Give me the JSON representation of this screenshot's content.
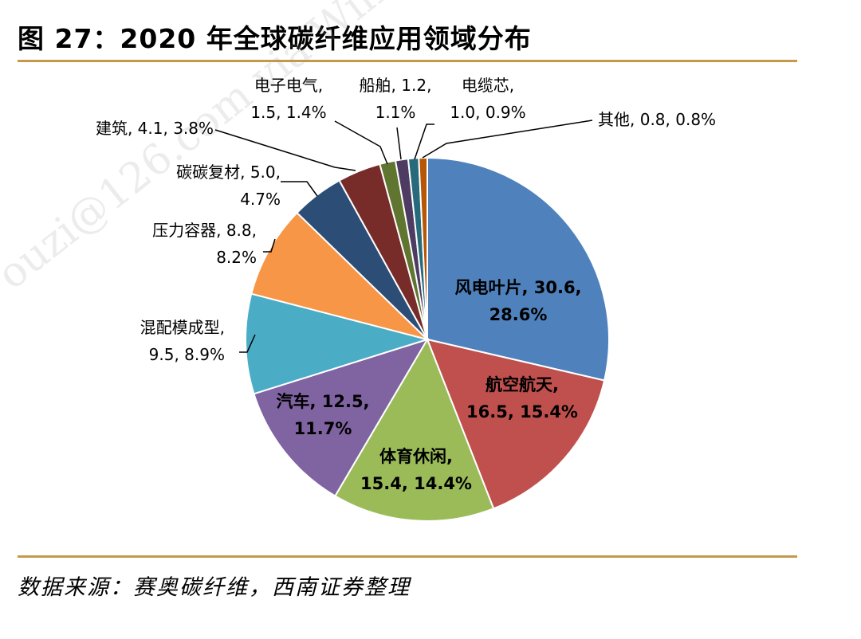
{
  "title": "图 27：2020 年全球碳纤维应用领域分布",
  "source": "数据来源：赛奥碳纤维，西南证券整理",
  "watermark": "ouzi@126.com via Wind",
  "colors": {
    "rule": "#c49a4a"
  },
  "chart_data": {
    "type": "pie",
    "title": "",
    "slices": [
      {
        "name": "风电叶片",
        "value": 30.6,
        "percent": 28.6,
        "color": "#4f81bd",
        "label": [
          "风电叶片, 30.6,",
          "28.6%"
        ]
      },
      {
        "name": "航空航天",
        "value": 16.5,
        "percent": 15.4,
        "color": "#c0504d",
        "label": [
          "航空航天,",
          "16.5, 15.4%"
        ]
      },
      {
        "name": "体育休闲",
        "value": 15.4,
        "percent": 14.4,
        "color": "#9bbb59",
        "label": [
          "体育休闲,",
          "15.4, 14.4%"
        ]
      },
      {
        "name": "汽车",
        "value": 12.5,
        "percent": 11.7,
        "color": "#8064a2",
        "label": [
          "汽车, 12.5,",
          "11.7%"
        ]
      },
      {
        "name": "混配模成型",
        "value": 9.5,
        "percent": 8.9,
        "color": "#4bacc6",
        "label": [
          "混配模成型,",
          "9.5, 8.9%"
        ]
      },
      {
        "name": "压力容器",
        "value": 8.8,
        "percent": 8.2,
        "color": "#f79646",
        "label": [
          "压力容器, 8.8,",
          "8.2%"
        ]
      },
      {
        "name": "碳碳复材",
        "value": 5.0,
        "percent": 4.7,
        "color": "#2c4d75",
        "label": [
          "碳碳复材, 5.0,",
          "4.7%"
        ]
      },
      {
        "name": "建筑",
        "value": 4.1,
        "percent": 3.8,
        "color": "#772c2a",
        "label": [
          "建筑, 4.1, 3.8%"
        ]
      },
      {
        "name": "电子电气",
        "value": 1.5,
        "percent": 1.4,
        "color": "#5f7530",
        "label": [
          "电子电气,",
          "1.5, 1.4%"
        ]
      },
      {
        "name": "船舶",
        "value": 1.2,
        "percent": 1.1,
        "color": "#4d3b62",
        "label": [
          "船舶, 1.2,",
          "1.1%"
        ]
      },
      {
        "name": "电缆芯",
        "value": 1.0,
        "percent": 0.9,
        "color": "#276a7c",
        "label": [
          "电缆芯,",
          "1.0, 0.9%"
        ]
      },
      {
        "name": "其他",
        "value": 0.8,
        "percent": 0.8,
        "color": "#b65708",
        "label": [
          "其他, 0.8, 0.8%"
        ]
      }
    ]
  }
}
